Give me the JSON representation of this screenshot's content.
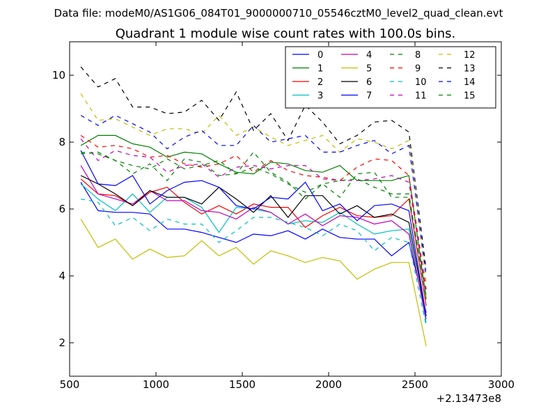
{
  "suptitle": "Data file: modeM0/AS1G06_084T01_9000000710_05546cztM0_level2_quad_clean.evt",
  "chart_data": {
    "type": "line",
    "title": "Quadrant 1 module wise count rates with 100.0s bins.",
    "xlabel": "",
    "ylabel": "",
    "x_offset_label": "+2.13473e8",
    "xlim": [
      500,
      3000
    ],
    "ylim": [
      1,
      11
    ],
    "xticks": [
      500,
      1000,
      1500,
      2000,
      2500,
      3000
    ],
    "xtick_labels": [
      "500",
      "1000",
      "1500",
      "2000",
      "2500",
      "3000"
    ],
    "yticks": [
      2,
      4,
      6,
      8,
      10
    ],
    "ytick_labels": [
      "2",
      "4",
      "6",
      "8",
      "10"
    ],
    "x": [
      565,
      665,
      765,
      865,
      965,
      1065,
      1165,
      1265,
      1365,
      1465,
      1565,
      1665,
      1765,
      1865,
      1965,
      2065,
      2165,
      2265,
      2365,
      2465,
      2565
    ],
    "series": [
      {
        "name": "0",
        "color": "#0000ff",
        "dash": "solid",
        "values": [
          6.8,
          5.95,
          5.9,
          5.9,
          5.85,
          5.4,
          5.4,
          5.3,
          5.15,
          5.0,
          5.25,
          5.2,
          5.35,
          5.1,
          5.4,
          5.15,
          5.1,
          5.1,
          4.6,
          5.0,
          2.9
        ]
      },
      {
        "name": "1",
        "color": "#008000",
        "dash": "solid",
        "values": [
          7.9,
          8.2,
          8.2,
          7.95,
          7.85,
          7.55,
          7.7,
          7.65,
          7.35,
          7.1,
          7.05,
          7.4,
          7.35,
          7.15,
          7.1,
          7.3,
          6.85,
          6.85,
          6.85,
          7.0,
          3.3
        ]
      },
      {
        "name": "2",
        "color": "#ff0000",
        "dash": "solid",
        "values": [
          6.9,
          6.45,
          6.4,
          6.1,
          6.5,
          6.65,
          6.2,
          5.85,
          6.1,
          5.85,
          6.15,
          6.05,
          6.05,
          5.45,
          5.8,
          6.05,
          5.8,
          5.75,
          5.8,
          6.3,
          3.1
        ]
      },
      {
        "name": "3",
        "color": "#00bfbf",
        "dash": "solid",
        "values": [
          6.75,
          6.3,
          5.95,
          6.45,
          5.9,
          6.35,
          6.35,
          6.05,
          5.3,
          6.05,
          6.0,
          5.9,
          5.55,
          5.65,
          5.6,
          5.9,
          5.55,
          5.25,
          5.35,
          5.4,
          2.6
        ]
      },
      {
        "name": "4",
        "color": "#bf00bf",
        "dash": "solid",
        "values": [
          7.3,
          6.45,
          6.3,
          6.15,
          6.55,
          6.25,
          6.25,
          5.95,
          5.9,
          5.7,
          6.05,
          5.9,
          5.55,
          5.85,
          5.5,
          5.8,
          5.75,
          5.55,
          5.65,
          5.25,
          2.7
        ]
      },
      {
        "name": "5",
        "color": "#bfbf00",
        "dash": "solid",
        "values": [
          5.7,
          4.85,
          5.1,
          4.5,
          4.8,
          4.55,
          4.6,
          5.05,
          4.6,
          4.85,
          4.35,
          4.75,
          4.6,
          4.4,
          4.55,
          4.45,
          3.9,
          4.2,
          4.4,
          4.4,
          1.9
        ]
      },
      {
        "name": "6",
        "color": "#000000",
        "dash": "solid",
        "values": [
          7.0,
          6.75,
          6.45,
          6.1,
          6.55,
          6.35,
          6.35,
          6.15,
          6.65,
          6.3,
          5.9,
          6.4,
          5.75,
          6.4,
          6.4,
          5.85,
          6.1,
          5.75,
          5.85,
          5.6,
          2.8
        ]
      },
      {
        "name": "7",
        "color": "#0000ff",
        "dash": "solid",
        "values": [
          7.75,
          6.75,
          6.7,
          7.0,
          6.15,
          6.55,
          6.8,
          6.85,
          6.65,
          6.1,
          6.0,
          6.35,
          6.3,
          6.8,
          5.95,
          6.15,
          5.65,
          6.1,
          6.15,
          5.95,
          2.8
        ]
      },
      {
        "name": "8",
        "color": "#008000",
        "dash": "dashed",
        "values": [
          7.7,
          7.65,
          7.45,
          7.05,
          7.35,
          6.85,
          7.5,
          7.4,
          7.0,
          7.05,
          7.7,
          7.1,
          6.8,
          6.3,
          6.75,
          6.35,
          7.05,
          7.1,
          6.35,
          6.35,
          3.4
        ]
      },
      {
        "name": "9",
        "color": "#ff0000",
        "dash": "dashed",
        "values": [
          8.2,
          7.85,
          7.9,
          7.8,
          7.55,
          7.6,
          7.35,
          7.25,
          7.35,
          7.6,
          7.1,
          7.45,
          7.15,
          7.0,
          6.95,
          6.85,
          7.25,
          7.5,
          7.45,
          7.0,
          3.6
        ]
      },
      {
        "name": "10",
        "color": "#00bfbf",
        "dash": "dashed",
        "values": [
          6.3,
          6.2,
          5.5,
          5.75,
          5.35,
          5.7,
          5.55,
          5.55,
          5.0,
          5.35,
          5.75,
          5.75,
          5.6,
          5.45,
          5.2,
          5.55,
          5.35,
          4.75,
          5.15,
          5.0,
          2.5
        ]
      },
      {
        "name": "11",
        "color": "#bf00bf",
        "dash": "dashed",
        "values": [
          8.1,
          7.45,
          7.75,
          7.6,
          7.55,
          7.1,
          7.3,
          7.35,
          6.95,
          7.25,
          7.3,
          7.2,
          7.3,
          7.3,
          6.9,
          6.85,
          6.85,
          6.9,
          7.0,
          6.8,
          3.5
        ]
      },
      {
        "name": "12",
        "color": "#bfbf00",
        "dash": "dashed",
        "values": [
          9.45,
          8.65,
          8.7,
          8.45,
          8.2,
          8.4,
          8.4,
          8.25,
          8.8,
          8.2,
          8.45,
          8.15,
          7.9,
          8.05,
          8.2,
          7.7,
          8.1,
          8.0,
          7.8,
          8.05,
          3.8
        ]
      },
      {
        "name": "13",
        "color": "#000000",
        "dash": "dashed",
        "values": [
          10.25,
          9.65,
          9.9,
          9.05,
          9.05,
          8.85,
          8.9,
          9.25,
          8.65,
          9.5,
          8.35,
          8.85,
          8.05,
          9.1,
          8.6,
          7.95,
          8.2,
          8.6,
          8.65,
          8.3,
          4.2
        ]
      },
      {
        "name": "14",
        "color": "#0000ff",
        "dash": "dashed",
        "values": [
          8.8,
          8.5,
          8.8,
          8.55,
          8.3,
          7.8,
          8.15,
          8.35,
          7.9,
          7.9,
          8.5,
          8.0,
          8.1,
          8.2,
          7.7,
          7.7,
          7.9,
          8.05,
          7.65,
          7.9,
          4.0
        ]
      },
      {
        "name": "15",
        "color": "#008000",
        "dash": "dashed",
        "values": [
          7.65,
          7.7,
          7.45,
          7.3,
          7.2,
          7.5,
          7.2,
          7.3,
          7.45,
          7.05,
          7.25,
          7.05,
          6.75,
          6.5,
          6.75,
          6.85,
          6.9,
          6.65,
          6.45,
          6.45,
          3.3
        ]
      }
    ]
  }
}
